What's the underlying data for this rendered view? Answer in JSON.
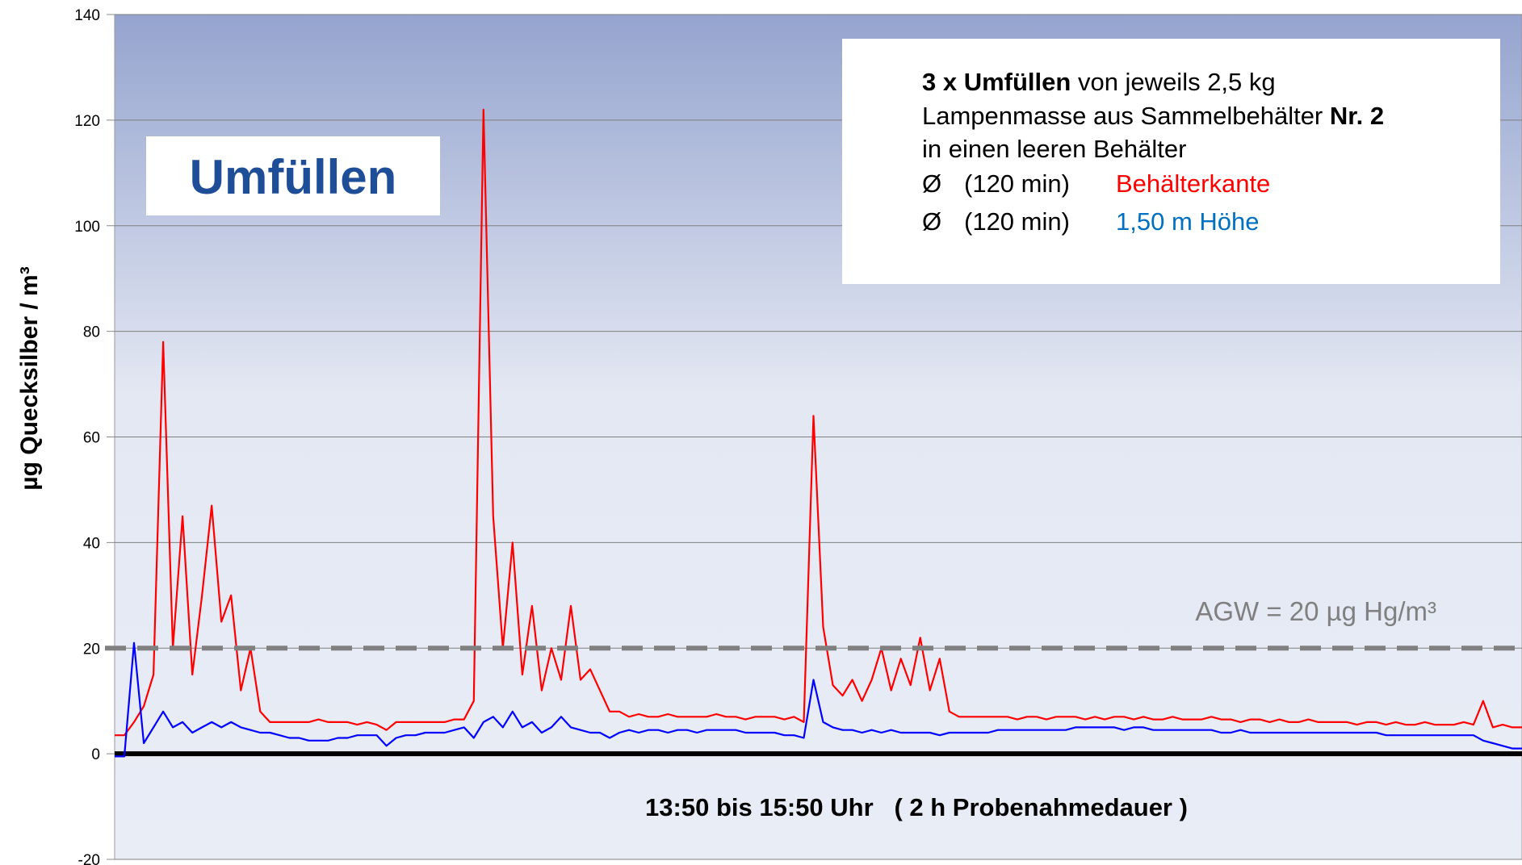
{
  "chart_data": {
    "type": "line",
    "y_label": "µg Quecksilber / m³",
    "x_label": "13:50 bis 15:50 Uhr   ( 2 h Probenahmedauer )",
    "ylim": [
      -20,
      140
    ],
    "yticks": [
      -20,
      0,
      20,
      40,
      60,
      80,
      100,
      120,
      140
    ],
    "grid": true,
    "box_title": "Umfüllen",
    "note": {
      "line1": [
        "3 x Umfüllen",
        "von jeweils 2,5 kg"
      ],
      "line2": [
        "Lampenmasse aus Sammelbehälter",
        "Nr. 2"
      ],
      "line3": "in einen leeren Behälter",
      "prefix": [
        "Ø",
        "(120 min)"
      ]
    },
    "reference_line": {
      "value": 20,
      "label": "AGW = 20 µg Hg/m³",
      "color": "#808080"
    },
    "series": [
      {
        "name": "Behälterkante",
        "color": "#ff0000",
        "values": [
          3.5,
          3.5,
          6,
          9,
          15,
          78,
          20,
          45,
          15,
          30,
          47,
          25,
          30,
          12,
          20,
          8,
          6,
          6,
          6,
          6,
          6,
          6.5,
          6,
          6,
          6,
          5.5,
          6,
          5.5,
          4.5,
          6,
          6,
          6,
          6,
          6,
          6,
          6.5,
          6.5,
          10,
          122,
          45,
          20,
          40,
          15,
          28,
          12,
          20,
          14,
          28,
          14,
          16,
          12,
          8,
          8,
          7,
          7.5,
          7,
          7,
          7.5,
          7,
          7,
          7,
          7,
          7.5,
          7,
          7,
          6.5,
          7,
          7,
          7,
          6.5,
          7,
          6,
          64,
          24,
          13,
          11,
          14,
          10,
          14,
          20,
          12,
          18,
          13,
          22,
          12,
          18,
          8,
          7,
          7,
          7,
          7,
          7,
          7,
          6.5,
          7,
          7,
          6.5,
          7,
          7,
          7,
          6.5,
          7,
          6.5,
          7,
          7,
          6.5,
          7,
          6.5,
          6.5,
          7,
          6.5,
          6.5,
          6.5,
          7,
          6.5,
          6.5,
          6,
          6.5,
          6.5,
          6,
          6.5,
          6,
          6,
          6.5,
          6,
          6,
          6,
          6,
          5.5,
          6,
          6,
          5.5,
          6,
          5.5,
          5.5,
          6,
          5.5,
          5.5,
          5.5,
          6,
          5.5,
          10,
          5,
          5.5,
          5,
          5
        ]
      },
      {
        "name": "1,50 m Höhe",
        "color": "#0000ff",
        "values": [
          -0.5,
          -0.5,
          21,
          2,
          5,
          8,
          5,
          6,
          4,
          5,
          6,
          5,
          6,
          5,
          4.5,
          4,
          4,
          3.5,
          3,
          3,
          2.5,
          2.5,
          2.5,
          3,
          3,
          3.5,
          3.5,
          3.5,
          1.5,
          3,
          3.5,
          3.5,
          4,
          4,
          4,
          4.5,
          5,
          3,
          6,
          7,
          5,
          8,
          5,
          6,
          4,
          5,
          7,
          5,
          4.5,
          4,
          4,
          3,
          4,
          4.5,
          4,
          4.5,
          4.5,
          4,
          4.5,
          4.5,
          4,
          4.5,
          4.5,
          4.5,
          4.5,
          4,
          4,
          4,
          4,
          3.5,
          3.5,
          3,
          14,
          6,
          5,
          4.5,
          4.5,
          4,
          4.5,
          4,
          4.5,
          4,
          4,
          4,
          4,
          3.5,
          4,
          4,
          4,
          4,
          4,
          4.5,
          4.5,
          4.5,
          4.5,
          4.5,
          4.5,
          4.5,
          4.5,
          5,
          5,
          5,
          5,
          5,
          4.5,
          5,
          5,
          4.5,
          4.5,
          4.5,
          4.5,
          4.5,
          4.5,
          4.5,
          4,
          4,
          4.5,
          4,
          4,
          4,
          4,
          4,
          4,
          4,
          4,
          4,
          4,
          4,
          4,
          4,
          4,
          3.5,
          3.5,
          3.5,
          3.5,
          3.5,
          3.5,
          3.5,
          3.5,
          3.5,
          3.5,
          2.5,
          2,
          1.5,
          1,
          1
        ]
      }
    ]
  }
}
